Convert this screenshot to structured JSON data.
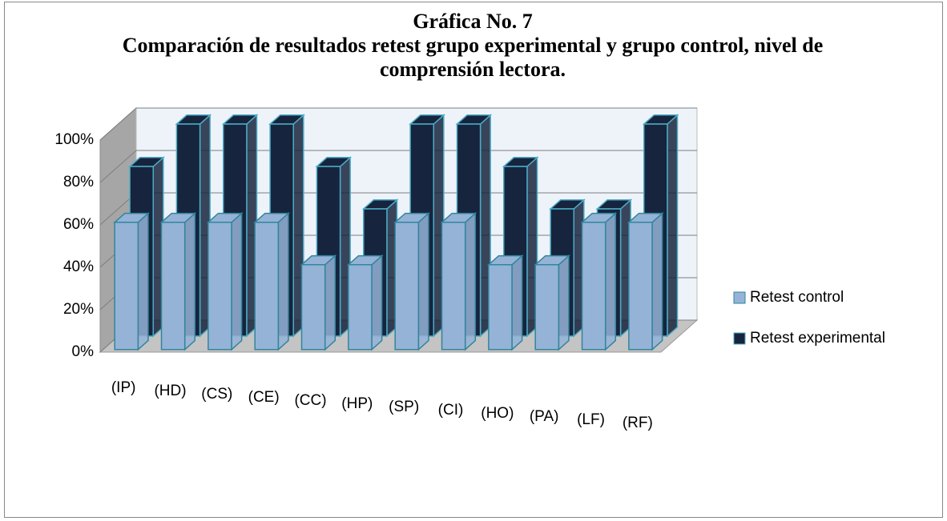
{
  "chart_data": {
    "type": "bar3d",
    "title": "Gráfica No. 7",
    "subtitle": "Comparación de resultados retest grupo experimental y grupo control, nivel de comprensión lectora.",
    "categories": [
      "(IP)",
      "(HD)",
      "(CS)",
      "(CE)",
      "(CC)",
      "(HP)",
      "(SP)",
      "(CI)",
      "(HO)",
      "(PA)",
      "(LF)",
      "(RF)"
    ],
    "series": [
      {
        "name": "Retest control",
        "color": "#95b3d7",
        "values": [
          60,
          60,
          60,
          60,
          40,
          40,
          60,
          60,
          40,
          40,
          60,
          60
        ]
      },
      {
        "name": "Retest experimental",
        "color": "#17243d",
        "values": [
          80,
          100,
          100,
          100,
          80,
          60,
          100,
          100,
          80,
          60,
          60,
          100
        ]
      }
    ],
    "ylim": [
      0,
      100
    ],
    "yticks": [
      {
        "value": 0,
        "label": "0%"
      },
      {
        "value": 20,
        "label": "20%"
      },
      {
        "value": 40,
        "label": "40%"
      },
      {
        "value": 60,
        "label": "60%"
      },
      {
        "value": 80,
        "label": "80%"
      },
      {
        "value": 100,
        "label": "100%"
      }
    ],
    "grid": true,
    "legend": "right"
  }
}
